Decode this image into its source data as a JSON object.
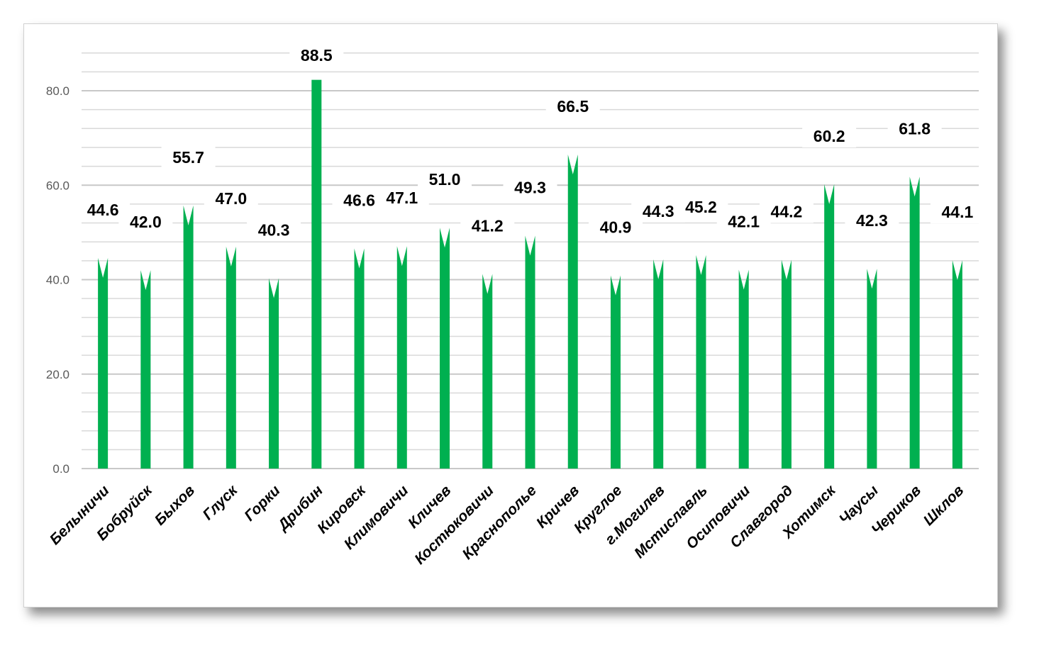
{
  "chart_data": {
    "type": "bar",
    "title": "",
    "xlabel": "",
    "ylabel": "",
    "ylim": [
      0,
      80
    ],
    "yticks": [
      "0.0",
      "20.0",
      "40.0",
      "60.0",
      "80.0"
    ],
    "grid": true,
    "bar_color": "#00b050",
    "categories": [
      "Белыничи",
      "Бобруйск",
      "Быхов",
      "Глуск",
      "Горки",
      "Дрибин",
      "Кировск",
      "Климовичи",
      "Кличев",
      "Костюковичи",
      "Краснополье",
      "Кричев",
      "Круглое",
      "г.Могилев",
      "Мстиславль",
      "Осиповичи",
      "Славгород",
      "Хотимск",
      "Чаусы",
      "Чериков",
      "Шклов"
    ],
    "values": [
      44.6,
      42.0,
      55.7,
      47.0,
      40.3,
      88.5,
      46.6,
      47.1,
      51.0,
      41.2,
      49.3,
      66.5,
      40.9,
      44.3,
      45.2,
      42.1,
      44.2,
      60.2,
      42.3,
      61.8,
      44.1
    ],
    "value_labels": [
      "44.6",
      "42.0",
      "55.7",
      "47.0",
      "40.3",
      "88.5",
      "46.6",
      "47.1",
      "51.0",
      "41.2",
      "49.3",
      "66.5",
      "40.9",
      "44.3",
      "45.2",
      "42.1",
      "44.2",
      "60.2",
      "42.3",
      "61.8",
      "44.1"
    ]
  }
}
